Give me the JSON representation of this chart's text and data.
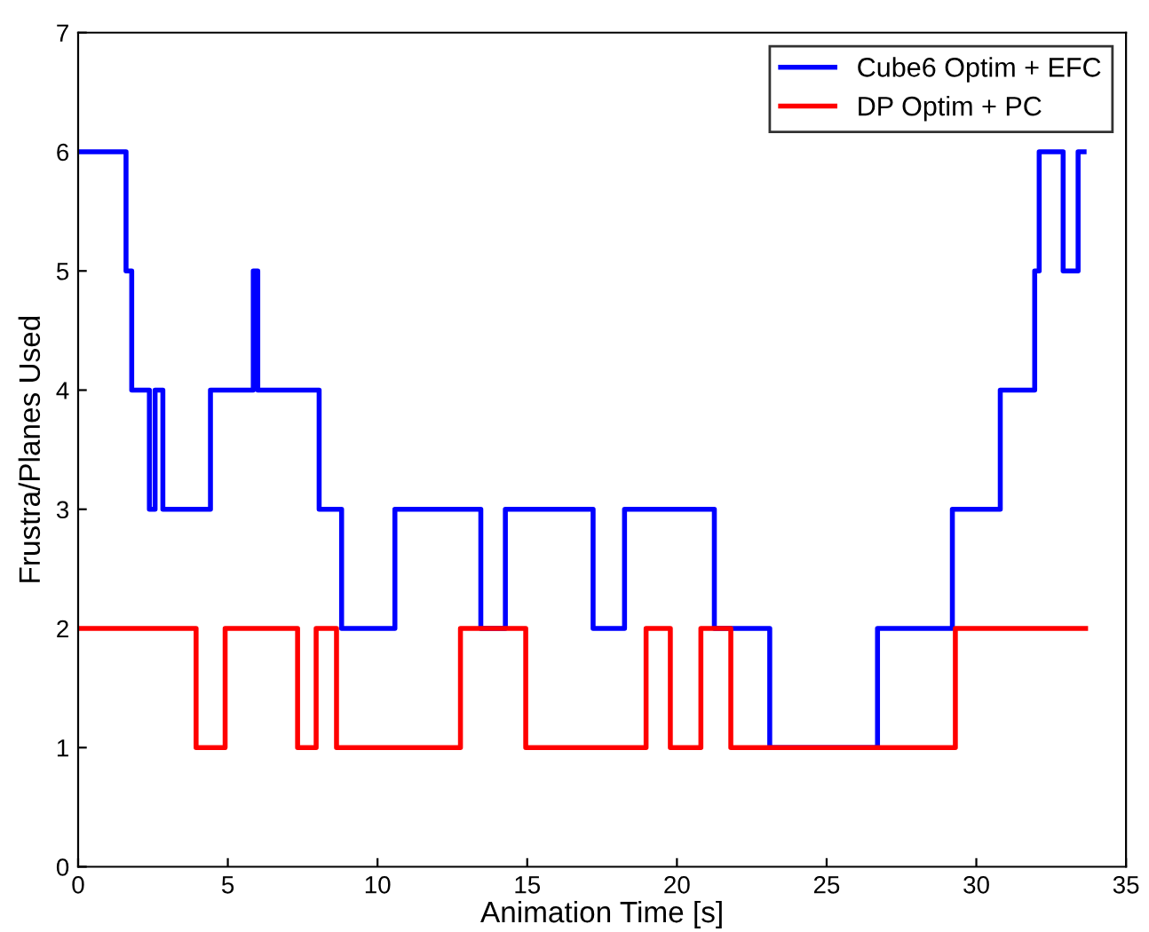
{
  "chart_data": {
    "type": "step",
    "xlabel": "Animation Time [s]",
    "ylabel": "Frustra/Planes Used",
    "xlim": [
      0,
      35
    ],
    "ylim": [
      0,
      7
    ],
    "xticks": [
      0,
      5,
      10,
      15,
      20,
      25,
      30,
      35
    ],
    "yticks": [
      0,
      1,
      2,
      3,
      4,
      5,
      6,
      7
    ],
    "grid": false,
    "legend": "top right",
    "marker": "none",
    "line_style": "solid",
    "series": [
      {
        "name": "Cube6 Optim + EFC",
        "color": "#0000ff",
        "x": [
          0,
          1.6,
          1.79,
          2.38,
          2.57,
          2.83,
          4.42,
          5.85,
          6.0,
          8.05,
          8.8,
          10.58,
          13.45,
          14.27,
          17.2,
          18.25,
          21.25,
          23.1,
          26.7,
          29.2,
          30.8,
          31.95,
          32.1,
          32.9,
          33.4,
          33.6
        ],
        "values": [
          6,
          5,
          4,
          3,
          4,
          3,
          4,
          5,
          4,
          3,
          2,
          3,
          2,
          3,
          2,
          3,
          2,
          1,
          2,
          3,
          4,
          5,
          6,
          5,
          6,
          6
        ]
      },
      {
        "name": "DP Optim + PC",
        "color": "#ff0000",
        "x": [
          0,
          3.94,
          4.91,
          7.33,
          7.95,
          8.63,
          12.77,
          14.95,
          18.97,
          19.78,
          20.8,
          21.8,
          29.3,
          33.65
        ],
        "values": [
          2,
          1,
          2,
          1,
          2,
          1,
          2,
          1,
          2,
          1,
          2,
          1,
          2,
          2
        ]
      }
    ]
  }
}
